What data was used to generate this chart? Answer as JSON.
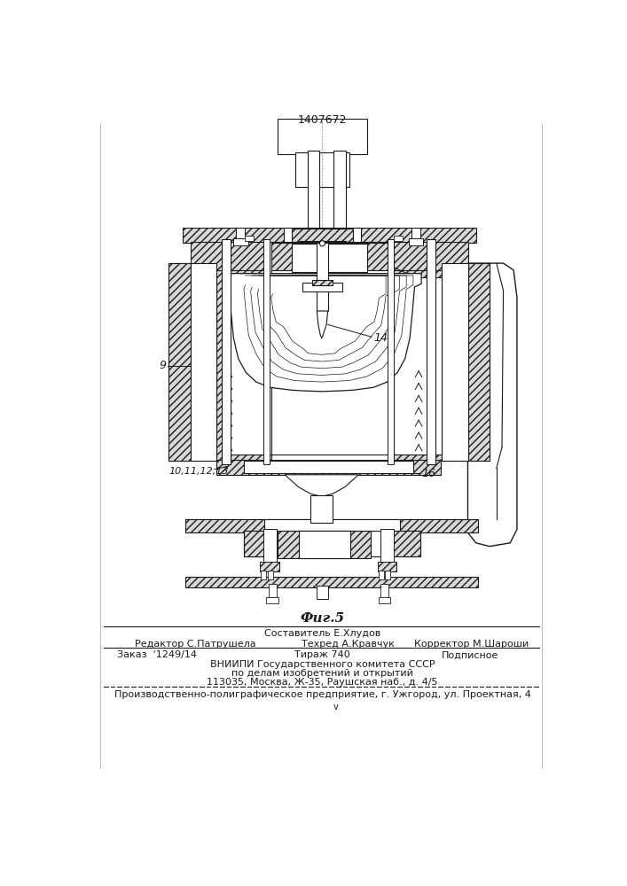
{
  "patent_number": "1407672",
  "fig_label": "Фиг.5",
  "label_9": "9",
  "label_14": "14",
  "label_16": "16",
  "label_10_13": "10,11,12,13",
  "footer_line1": "Составитель Е.Хлудов",
  "footer_editor": "Редактор С.Патрушела",
  "footer_tech": "Техред А.Кравчук",
  "footer_corrector": "Корректор М.Шароши",
  "footer_order": "Заказ  '1249/14",
  "footer_tirazh": "Тираж 740",
  "footer_podpisnoe": "Подписное",
  "footer_vniipи": "ВНИИПИ Государственного комитета СССР",
  "footer_dela": "по делам изобретений и открытий",
  "footer_address": "113035, Москва, Ж-35, Раушская наб., д. 4/5",
  "footer_factory": "Производственно-полиграфическое предприятие, г. Ужгород, ул. Проектная, 4",
  "bg_color": "#ffffff",
  "line_color": "#1a1a1a"
}
